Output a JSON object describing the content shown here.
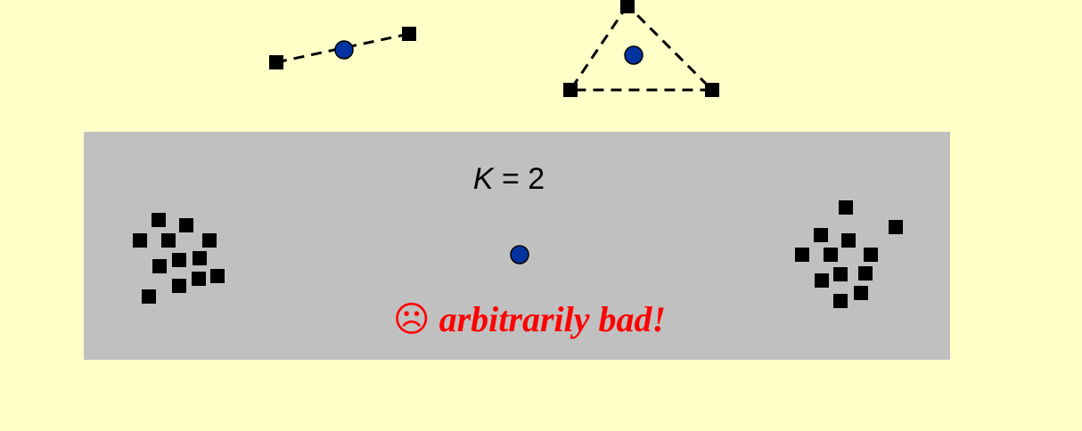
{
  "k_label": {
    "variable": "K",
    "rest": " = 2"
  },
  "verdict": {
    "face": "☹",
    "text": " arbitrarily bad!"
  },
  "colors": {
    "background": "#ffffc8",
    "panel": "#c0c0c0",
    "point": "#000000",
    "centroid": "#0033a0",
    "verdict": "#ff0000"
  },
  "icons": {
    "point": "black-square",
    "centroid": "blue-circle",
    "verdict_face": "frowning-face-icon"
  }
}
